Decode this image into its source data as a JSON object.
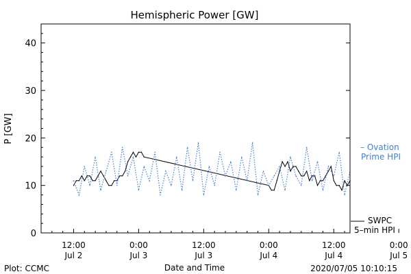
{
  "chart_data": {
    "type": "line",
    "title": "Hemispheric Power [GW]",
    "ylabel": "P [GW]",
    "xlabel": "Date and Time",
    "ylim": [
      0,
      44
    ],
    "yticks": [
      0,
      10,
      20,
      30,
      40
    ],
    "xlim": [
      -6,
      51
    ],
    "xticks": [
      {
        "h": 0,
        "l1": "12:00",
        "l2": "Jul 2"
      },
      {
        "h": 12,
        "l1": "0:00",
        "l2": "Jul 3"
      },
      {
        "h": 24,
        "l1": "12:00",
        "l2": "Jul 3"
      },
      {
        "h": 36,
        "l1": "0:00",
        "l2": "Jul 4"
      },
      {
        "h": 48,
        "l1": "12:00",
        "l2": "Jul 4"
      },
      {
        "h": 60,
        "l1": "0:00",
        "l2": "Jul 5"
      }
    ],
    "x_unit": "hours since 2020-07-02 12:00 UT",
    "grid": false,
    "series": [
      {
        "name": "SWPC 5-min HPI",
        "color": "#000000",
        "style": "solid",
        "x": [
          0.0,
          0.5,
          1.0,
          1.5,
          2.0,
          2.5,
          3.0,
          3.5,
          4.0,
          4.5,
          5.0,
          5.5,
          6.0,
          6.5,
          7.0,
          7.5,
          8.0,
          8.5,
          9.0,
          9.5,
          10.0,
          10.5,
          11.0,
          11.5,
          12.0,
          12.5,
          13.0,
          36.0,
          36.5,
          37.0,
          37.5,
          38.0,
          38.5,
          39.0,
          39.5,
          40.0,
          40.5,
          41.0,
          41.5,
          42.0,
          42.5,
          43.0,
          43.5,
          44.0,
          44.5,
          45.0,
          45.5,
          46.0,
          46.5,
          47.0,
          47.5,
          48.0,
          48.5,
          49.0,
          49.5,
          50.0,
          50.5,
          51.0
        ],
        "y": [
          10,
          11,
          11,
          12,
          11,
          12,
          12,
          11,
          11,
          12,
          13,
          12,
          11,
          10,
          10,
          11,
          11,
          12,
          12,
          13,
          15,
          16,
          17,
          16,
          17,
          17,
          16,
          10,
          9,
          9,
          11,
          13,
          15,
          14,
          15,
          13,
          14,
          14,
          13,
          12,
          12,
          13,
          11,
          12,
          12,
          10,
          11,
          11,
          12,
          13,
          14,
          11,
          10,
          10,
          9,
          11,
          10,
          11
        ]
      },
      {
        "name": "Ovation Prime HPI",
        "color": "#3f7fd6",
        "style": "dotted",
        "x": [
          0,
          1,
          2,
          3,
          4,
          5,
          6,
          7,
          8,
          9,
          10,
          11,
          12,
          13,
          14,
          15,
          16,
          17,
          18,
          19,
          20,
          21,
          22,
          23,
          24,
          25,
          26,
          27,
          28,
          29,
          30,
          31,
          32,
          33,
          34,
          35,
          36,
          37,
          38,
          39,
          40,
          41,
          42,
          43,
          44,
          45,
          46,
          47,
          48,
          49,
          50,
          51
        ],
        "y": [
          11,
          8,
          14,
          10,
          16,
          9,
          13,
          17,
          10,
          18,
          12,
          16,
          9,
          14,
          11,
          17,
          8,
          13,
          10,
          16,
          9,
          18,
          11,
          19,
          8,
          14,
          10,
          17,
          12,
          15,
          9,
          16,
          11,
          19,
          8,
          13,
          10,
          12,
          14,
          9,
          16,
          12,
          10,
          18,
          11,
          15,
          9,
          14,
          12,
          17,
          8,
          13
        ]
      }
    ]
  },
  "legend": {
    "ovation_line1": "– Ovation",
    "ovation_line2": "Prime HPI",
    "swpc_line1": "SWPC",
    "swpc_line2": "5–min HPI"
  },
  "footer": {
    "plot_credit": "Plot: CCMC",
    "timestamp": "2020/07/05 10:10:15"
  }
}
